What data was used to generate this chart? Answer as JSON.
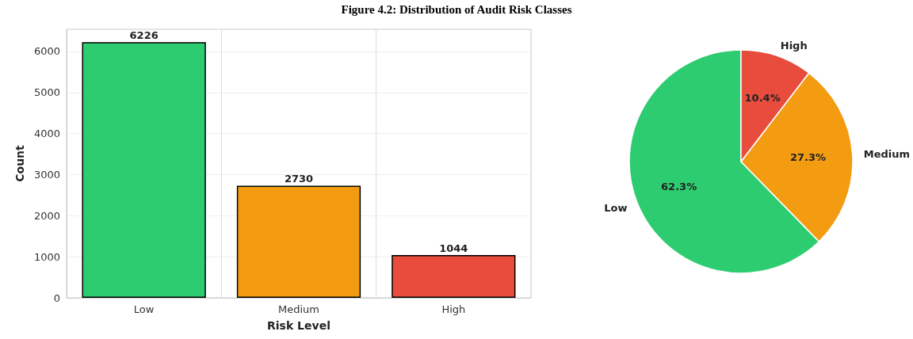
{
  "chart_data": [
    {
      "type": "bar",
      "title": "Figure 4.2: Distribution of Audit Risk Classes",
      "categories": [
        "Low",
        "Medium",
        "High"
      ],
      "values": [
        6226,
        2730,
        1044
      ],
      "colors": [
        "#2ecc71",
        "#f39c12",
        "#e74c3c"
      ],
      "xlabel": "Risk Level",
      "ylabel": "Count",
      "ylim": [
        0,
        6540
      ],
      "yticks": [
        0,
        1000,
        2000,
        3000,
        4000,
        5000,
        6000
      ],
      "grid": true,
      "data_labels": true
    },
    {
      "type": "pie",
      "categories": [
        "Low",
        "Medium",
        "High"
      ],
      "values": [
        62.3,
        27.3,
        10.4
      ],
      "colors": [
        "#2ecc71",
        "#f39c12",
        "#e74c3c"
      ],
      "value_labels": [
        "62.3%",
        "27.3%",
        "10.4%"
      ]
    }
  ]
}
